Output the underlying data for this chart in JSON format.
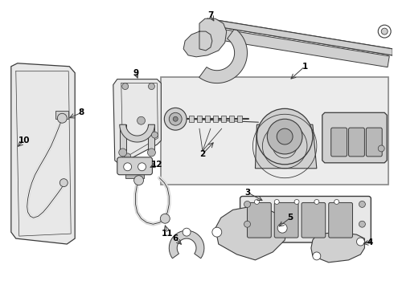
{
  "bg_color": "#ffffff",
  "fig_width": 4.9,
  "fig_height": 3.6,
  "dpi": 100,
  "line_color": "#3a3a3a",
  "label_color": "#000000",
  "label_fontsize": 7.5,
  "lw_main": 0.9,
  "lw_thin": 0.5,
  "lw_thick": 1.5,
  "fill_light": "#e8e8e8",
  "fill_mid": "#d0d0d0",
  "fill_dark": "#b8b8b8",
  "fill_white": "#ffffff",
  "fill_box": "#ececec"
}
